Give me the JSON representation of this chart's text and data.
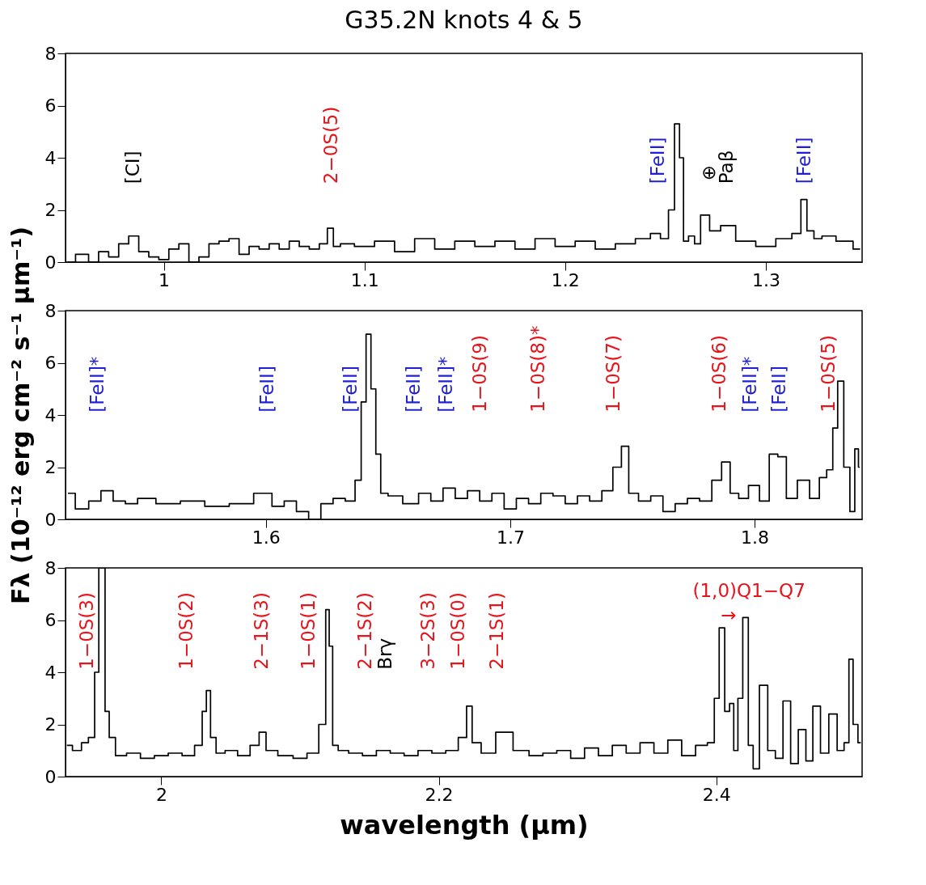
{
  "chart_data": [
    {
      "type": "step",
      "title": "G35.2N knots 4 & 5",
      "xlim": [
        0.951,
        1.348
      ],
      "ylim": [
        0,
        8
      ],
      "xticks": [
        1,
        1.1,
        1.2,
        1.3
      ],
      "yticks": [
        0,
        2,
        4,
        6,
        8
      ],
      "x": [
        0.952,
        0.96,
        0.965,
        0.97,
        0.975,
        0.98,
        0.985,
        0.99,
        0.995,
        1.0,
        1.005,
        1.01,
        1.015,
        1.02,
        1.025,
        1.03,
        1.035,
        1.04,
        1.045,
        1.05,
        1.055,
        1.06,
        1.065,
        1.07,
        1.075,
        1.08,
        1.083,
        1.086,
        1.09,
        1.1,
        1.11,
        1.12,
        1.13,
        1.14,
        1.15,
        1.16,
        1.17,
        1.18,
        1.19,
        1.2,
        1.21,
        1.22,
        1.23,
        1.24,
        1.245,
        1.25,
        1.253,
        1.256,
        1.258,
        1.26,
        1.263,
        1.266,
        1.269,
        1.275,
        1.28,
        1.29,
        1.3,
        1.31,
        1.316,
        1.319,
        1.322,
        1.326,
        1.33,
        1.34,
        1.347
      ],
      "series": [
        {
          "color": "#000000",
          "values": [
            0.0,
            0.3,
            0.0,
            0.4,
            0.2,
            0.7,
            1.0,
            0.4,
            0.2,
            0.1,
            0.5,
            0.7,
            0.0,
            0.2,
            0.7,
            0.8,
            0.9,
            0.3,
            0.6,
            0.5,
            0.7,
            0.5,
            0.8,
            0.6,
            0.5,
            0.7,
            1.3,
            0.6,
            0.7,
            0.6,
            0.8,
            0.4,
            0.9,
            0.5,
            0.8,
            0.6,
            0.8,
            0.5,
            0.9,
            0.6,
            0.8,
            0.5,
            0.7,
            0.9,
            1.1,
            0.9,
            2.0,
            5.3,
            4.0,
            0.8,
            1.0,
            0.7,
            1.8,
            1.2,
            1.4,
            0.8,
            0.6,
            0.9,
            1.1,
            2.4,
            1.2,
            0.9,
            1.0,
            0.8,
            0.5
          ]
        }
      ],
      "annotations": [
        "[CI]",
        "2−0S(5)",
        "[FeII]",
        "⊕",
        "Paβ",
        "[FeII]"
      ]
    },
    {
      "type": "step",
      "ylabel": "Fλ (10⁻¹² erg cm⁻² s⁻¹ μm⁻¹)",
      "xlim": [
        1.518,
        1.844
      ],
      "ylim": [
        0,
        8
      ],
      "xticks": [
        1.6,
        1.7,
        1.8
      ],
      "yticks": [
        0,
        2,
        4,
        6,
        8
      ],
      "x": [
        1.519,
        1.525,
        1.53,
        1.535,
        1.54,
        1.545,
        1.55,
        1.56,
        1.57,
        1.58,
        1.59,
        1.6,
        1.605,
        1.61,
        1.615,
        1.62,
        1.625,
        1.63,
        1.635,
        1.638,
        1.64,
        1.642,
        1.644,
        1.646,
        1.648,
        1.652,
        1.66,
        1.665,
        1.67,
        1.675,
        1.68,
        1.685,
        1.69,
        1.695,
        1.7,
        1.705,
        1.71,
        1.715,
        1.72,
        1.725,
        1.73,
        1.735,
        1.74,
        1.744,
        1.747,
        1.75,
        1.755,
        1.76,
        1.765,
        1.77,
        1.775,
        1.78,
        1.785,
        1.788,
        1.792,
        1.795,
        1.8,
        1.804,
        1.808,
        1.811,
        1.815,
        1.82,
        1.825,
        1.828,
        1.831,
        1.833,
        1.835,
        1.838,
        1.84,
        1.842,
        1.843
      ],
      "series": [
        {
          "color": "#000000",
          "values": [
            1.0,
            0.4,
            0.7,
            1.1,
            0.7,
            0.6,
            0.8,
            0.6,
            0.7,
            0.5,
            0.6,
            1.0,
            0.5,
            0.7,
            0.3,
            0.0,
            0.6,
            0.8,
            0.7,
            1.5,
            4.5,
            7.1,
            5.0,
            2.5,
            1.0,
            0.9,
            0.6,
            1.0,
            0.7,
            1.2,
            0.8,
            1.1,
            0.7,
            1.0,
            0.4,
            0.8,
            0.6,
            1.0,
            0.9,
            0.6,
            0.9,
            0.7,
            1.1,
            2.0,
            2.8,
            1.0,
            0.7,
            0.9,
            0.3,
            0.6,
            0.8,
            0.7,
            1.5,
            2.2,
            1.0,
            0.8,
            1.3,
            0.7,
            2.5,
            2.4,
            0.8,
            1.5,
            0.8,
            1.6,
            1.9,
            3.5,
            5.3,
            2.0,
            0.3,
            2.7,
            2.0
          ]
        }
      ],
      "annotations": [
        "[FeII]*",
        "[FeII]",
        "[FeII]",
        "[FeII]",
        "[FeII]*",
        "1−0S(9)",
        "1−0S(8)*",
        "1−0S(7)",
        "1−0S(6)",
        "[FeII]*",
        "[FeII]",
        "1−0S(5)"
      ]
    },
    {
      "type": "step",
      "xlabel": "wavelength (μm)",
      "xlim": [
        1.931,
        2.505
      ],
      "ylim": [
        0,
        8
      ],
      "xticks": [
        2,
        2.2,
        2.4
      ],
      "yticks": [
        0,
        2,
        4,
        6,
        8
      ],
      "x": [
        1.932,
        1.94,
        1.945,
        1.95,
        1.954,
        1.956,
        1.958,
        1.961,
        1.964,
        1.97,
        1.98,
        1.99,
        2.0,
        2.01,
        2.02,
        2.028,
        2.031,
        2.034,
        2.037,
        2.042,
        2.05,
        2.06,
        2.068,
        2.073,
        2.078,
        2.09,
        2.1,
        2.11,
        2.117,
        2.12,
        2.122,
        2.125,
        2.13,
        2.14,
        2.15,
        2.16,
        2.17,
        2.18,
        2.19,
        2.2,
        2.21,
        2.218,
        2.222,
        2.226,
        2.235,
        2.247,
        2.26,
        2.27,
        2.28,
        2.29,
        2.3,
        2.31,
        2.32,
        2.33,
        2.34,
        2.35,
        2.36,
        2.37,
        2.38,
        2.39,
        2.397,
        2.4,
        2.404,
        2.408,
        2.411,
        2.414,
        2.417,
        2.421,
        2.425,
        2.428,
        2.434,
        2.44,
        2.445,
        2.451,
        2.456,
        2.462,
        2.467,
        2.472,
        2.478,
        2.484,
        2.49,
        2.494,
        2.497,
        2.5,
        2.504
      ],
      "series": [
        {
          "color": "#000000",
          "values": [
            1.2,
            1.0,
            1.3,
            1.5,
            4.0,
            8.0,
            8.0,
            2.5,
            1.5,
            0.8,
            0.9,
            0.7,
            0.8,
            0.9,
            0.8,
            1.2,
            2.5,
            3.3,
            1.5,
            0.9,
            1.0,
            0.8,
            1.2,
            1.7,
            1.0,
            0.8,
            0.7,
            0.9,
            2.0,
            6.4,
            5.0,
            1.2,
            1.0,
            0.9,
            0.8,
            1.0,
            0.9,
            0.8,
            1.0,
            0.9,
            1.0,
            1.5,
            2.7,
            1.3,
            0.9,
            1.7,
            1.0,
            0.8,
            0.9,
            1.0,
            0.7,
            1.1,
            0.8,
            1.2,
            0.9,
            1.3,
            0.9,
            1.4,
            0.8,
            1.2,
            1.3,
            3.0,
            5.7,
            2.5,
            2.8,
            1.0,
            3.0,
            6.1,
            1.2,
            0.3,
            3.5,
            1.0,
            0.7,
            2.9,
            0.5,
            1.8,
            0.6,
            2.7,
            0.9,
            2.4,
            1.0,
            1.3,
            4.5,
            2.0,
            1.3
          ]
        }
      ],
      "annotations": [
        "1−0S(3)",
        "1−0S(2)",
        "2−1S(3)",
        "1−0S(1)",
        "2−1S(2)",
        "Brγ",
        "3−2S(3)",
        "1−0S(0)",
        "2−1S(1)",
        "(1,0)Q1−Q7",
        "→"
      ]
    }
  ]
}
